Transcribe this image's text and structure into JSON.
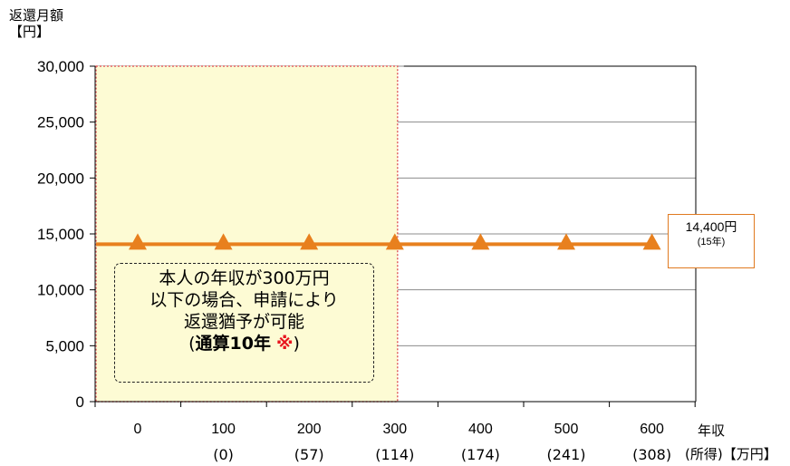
{
  "chart_data": {
    "type": "line",
    "ylabel_line1": "返還月額",
    "ylabel_line2": "【円】",
    "xlabel_line1": "年収",
    "xlabel_line2": "(所得)【万円】",
    "ylim": [
      0,
      30000
    ],
    "yticks": [
      "0",
      "5,000",
      "10,000",
      "15,000",
      "20,000",
      "25,000",
      "30,000"
    ],
    "ytick_values": [
      0,
      5000,
      10000,
      15000,
      20000,
      25000,
      30000
    ],
    "categories": [
      "0",
      "100",
      "200",
      "300",
      "400",
      "500",
      "600"
    ],
    "sub_categories": [
      "",
      "(0)",
      "(57)",
      "(114)",
      "(174)",
      "(241)",
      "(308)"
    ],
    "series": [
      {
        "values": [
          14400,
          14400,
          14400,
          14400,
          14400,
          14400,
          14400
        ]
      }
    ],
    "grid": true,
    "line_color": "#e8801e",
    "highlight_region": {
      "from_category": "0",
      "to_category": "300",
      "fill": "#fdfbd4",
      "border": "#e06060"
    },
    "callout": {
      "value": "14,400円",
      "sub": "(15年)"
    },
    "note": {
      "line1": "本人の年収が300万円",
      "line2": "以下の場合、申請により",
      "line3": "返還猶予が可能",
      "line4_open": "(",
      "line4_bold": "通算10年",
      "line4_mark": "※",
      "line4_close": ")"
    }
  }
}
